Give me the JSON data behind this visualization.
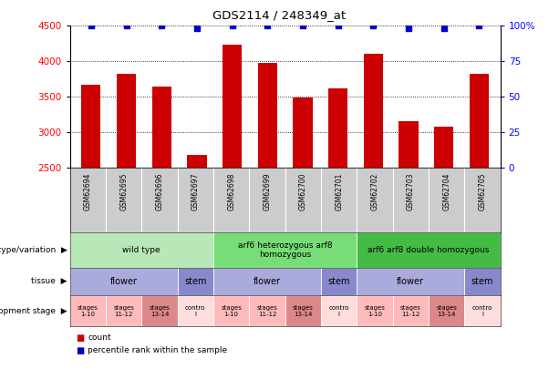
{
  "title": "GDS2114 / 248349_at",
  "samples": [
    "GSM62694",
    "GSM62695",
    "GSM62696",
    "GSM62697",
    "GSM62698",
    "GSM62699",
    "GSM62700",
    "GSM62701",
    "GSM62702",
    "GSM62703",
    "GSM62704",
    "GSM62705"
  ],
  "counts": [
    3670,
    3830,
    3650,
    2680,
    4230,
    3980,
    3490,
    3620,
    4110,
    3160,
    3080,
    3820
  ],
  "percentile": [
    100,
    100,
    100,
    98,
    100,
    100,
    100,
    100,
    100,
    98,
    98,
    100
  ],
  "ylim_left": [
    2500,
    4500
  ],
  "ylim_right": [
    0,
    100
  ],
  "yticks_left": [
    2500,
    3000,
    3500,
    4000,
    4500
  ],
  "yticks_right": [
    0,
    25,
    50,
    75,
    100
  ],
  "bar_color": "#cc0000",
  "dot_color": "#0000cc",
  "genotype_row": {
    "label": "genotype/variation",
    "groups": [
      {
        "text": "wild type",
        "start": 0,
        "end": 4,
        "color": "#b8e8b8"
      },
      {
        "text": "arf6 heterozygous arf8\nhomozygous",
        "start": 4,
        "end": 8,
        "color": "#77dd77"
      },
      {
        "text": "arf6 arf8 double homozygous",
        "start": 8,
        "end": 12,
        "color": "#44bb44"
      }
    ]
  },
  "tissue_row": {
    "label": "tissue",
    "groups": [
      {
        "text": "flower",
        "start": 0,
        "end": 3,
        "color": "#aaaadd"
      },
      {
        "text": "stem",
        "start": 3,
        "end": 4,
        "color": "#8888cc"
      },
      {
        "text": "flower",
        "start": 4,
        "end": 7,
        "color": "#aaaadd"
      },
      {
        "text": "stem",
        "start": 7,
        "end": 8,
        "color": "#8888cc"
      },
      {
        "text": "flower",
        "start": 8,
        "end": 11,
        "color": "#aaaadd"
      },
      {
        "text": "stem",
        "start": 11,
        "end": 12,
        "color": "#8888cc"
      }
    ]
  },
  "stage_row": {
    "label": "development stage",
    "groups": [
      {
        "text": "stages\n1-10",
        "start": 0,
        "end": 1,
        "color": "#ffbbbb"
      },
      {
        "text": "stages\n11-12",
        "start": 1,
        "end": 2,
        "color": "#ffbbbb"
      },
      {
        "text": "stages\n13-14",
        "start": 2,
        "end": 3,
        "color": "#dd8888"
      },
      {
        "text": "contro\nl",
        "start": 3,
        "end": 4,
        "color": "#ffdddd"
      },
      {
        "text": "stages\n1-10",
        "start": 4,
        "end": 5,
        "color": "#ffbbbb"
      },
      {
        "text": "stages\n11-12",
        "start": 5,
        "end": 6,
        "color": "#ffbbbb"
      },
      {
        "text": "stages\n13-14",
        "start": 6,
        "end": 7,
        "color": "#dd8888"
      },
      {
        "text": "contro\nl",
        "start": 7,
        "end": 8,
        "color": "#ffdddd"
      },
      {
        "text": "stages\n1-10",
        "start": 8,
        "end": 9,
        "color": "#ffbbbb"
      },
      {
        "text": "stages\n11-12",
        "start": 9,
        "end": 10,
        "color": "#ffbbbb"
      },
      {
        "text": "stages\n13-14",
        "start": 10,
        "end": 11,
        "color": "#dd8888"
      },
      {
        "text": "contro\nl",
        "start": 11,
        "end": 12,
        "color": "#ffdddd"
      }
    ]
  }
}
